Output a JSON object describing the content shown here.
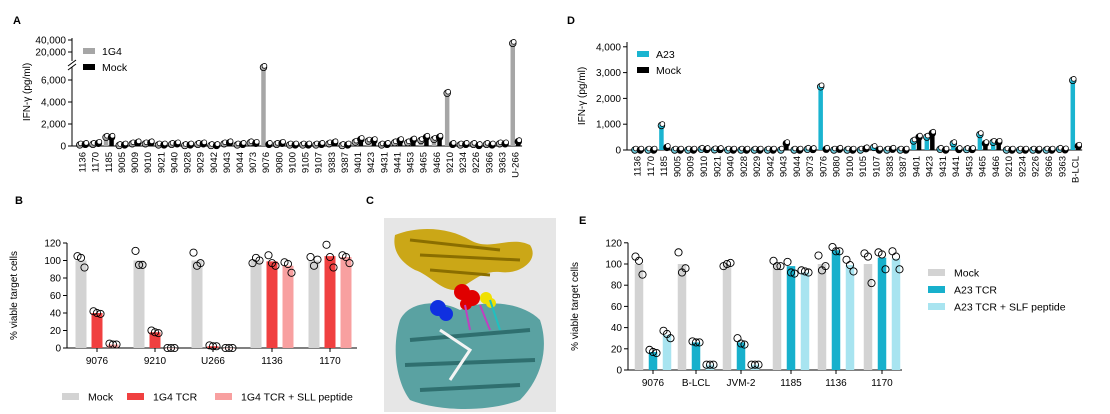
{
  "chart_data": [
    {
      "panel": "A",
      "type": "bar",
      "ylabel": "IFN-γ (pg/ml)",
      "yticks": [
        "0",
        "2,000",
        "4,000",
        "6,000",
        "20,000",
        "40,000"
      ],
      "ytick_values": [
        0,
        2000,
        4000,
        6000,
        20000,
        40000
      ],
      "axis_break": [
        7000,
        10000
      ],
      "legend_position": "top-left",
      "categories": [
        "1136",
        "1170",
        "1185",
        "9005",
        "9009",
        "9010",
        "9021",
        "9040",
        "9028",
        "9029",
        "9042",
        "9043",
        "9044",
        "9073",
        "9076",
        "9080",
        "9100",
        "9105",
        "9107",
        "9383",
        "9387",
        "9401",
        "9423",
        "9431",
        "9441",
        "9453",
        "9465",
        "9466",
        "9210",
        "9234",
        "9226",
        "9366",
        "9363",
        "U-266"
      ],
      "series": [
        {
          "name": "1G4",
          "color": "#a6a6a6",
          "values": [
            100,
            150,
            800,
            50,
            200,
            200,
            100,
            150,
            50,
            150,
            50,
            200,
            100,
            300,
            7500,
            150,
            100,
            100,
            100,
            200,
            50,
            350,
            450,
            100,
            300,
            300,
            500,
            600,
            4800,
            100,
            150,
            150,
            200,
            33000
          ]
        },
        {
          "name": "Mock",
          "color": "#000000",
          "values": [
            150,
            250,
            800,
            100,
            300,
            300,
            100,
            200,
            100,
            200,
            50,
            300,
            150,
            250,
            150,
            250,
            100,
            100,
            150,
            300,
            100,
            600,
            500,
            150,
            500,
            550,
            800,
            800,
            150,
            150,
            50,
            100,
            200,
            400
          ]
        }
      ]
    },
    {
      "panel": "D",
      "type": "bar",
      "ylabel": "IFN-γ (pg/ml)",
      "yticks": [
        "0",
        "1,000",
        "2,000",
        "3,000",
        "4,000"
      ],
      "ytick_values": [
        0,
        1000,
        2000,
        3000,
        4000
      ],
      "ylim": [
        0,
        4200
      ],
      "legend_position": "top-left",
      "categories": [
        "1136",
        "1170",
        "1185",
        "9005",
        "9009",
        "9010",
        "9021",
        "9040",
        "9028",
        "9029",
        "9042",
        "9043",
        "9044",
        "9073",
        "9076",
        "9080",
        "9100",
        "9105",
        "9107",
        "9383",
        "9387",
        "9401",
        "9423",
        "9431",
        "9441",
        "9453",
        "9465",
        "9466",
        "9210",
        "9234",
        "9226",
        "9366",
        "9363",
        "B-LCL"
      ],
      "series": [
        {
          "name": "A23",
          "color": "#1ab4d0",
          "values": [
            0,
            0,
            950,
            0,
            0,
            30,
            10,
            0,
            0,
            0,
            0,
            0,
            0,
            30,
            2450,
            0,
            0,
            0,
            100,
            0,
            0,
            350,
            500,
            30,
            250,
            20,
            600,
            300,
            0,
            0,
            0,
            0,
            30,
            2700
          ]
        },
        {
          "name": "Mock",
          "color": "#000000",
          "values": [
            0,
            0,
            100,
            0,
            0,
            20,
            20,
            0,
            0,
            0,
            0,
            250,
            0,
            20,
            30,
            30,
            0,
            50,
            0,
            30,
            0,
            500,
            650,
            0,
            20,
            20,
            250,
            300,
            0,
            0,
            0,
            0,
            10,
            150
          ]
        }
      ]
    },
    {
      "panel": "B",
      "type": "bar",
      "ylabel": "% viable target cells",
      "yticks": [
        "0",
        "20",
        "40",
        "60",
        "80",
        "100",
        "120"
      ],
      "ytick_values": [
        0,
        20,
        40,
        60,
        80,
        100,
        120
      ],
      "ylim": [
        0,
        120
      ],
      "legend_position": "bottom",
      "categories": [
        "9076",
        "9210",
        "U266",
        "1136",
        "1170"
      ],
      "series": [
        {
          "name": "Mock",
          "color": "#d3d3d3",
          "values": [
            100,
            100,
            100,
            100,
            100
          ],
          "points": [
            [
              105,
              103,
              92
            ],
            [
              111,
              95,
              95
            ],
            [
              109,
              94,
              97
            ],
            [
              97,
              103,
              100
            ],
            [
              104,
              94,
              101
            ]
          ]
        },
        {
          "name": "1G4 TCR",
          "color": "#f04040",
          "values": [
            40,
            18,
            2,
            99,
            105
          ],
          "points": [
            [
              42,
              40,
              39
            ],
            [
              20,
              18,
              17
            ],
            [
              3,
              2,
              2
            ],
            [
              106,
              97,
              94
            ],
            [
              118,
              104,
              92
            ]
          ]
        },
        {
          "name": "1G4 TCR + SLL peptide",
          "color": "#f8a0a0",
          "values": [
            4,
            0,
            0,
            94,
            104
          ],
          "points": [
            [
              5,
              4,
              4
            ],
            [
              0,
              0,
              0
            ],
            [
              0,
              0,
              0
            ],
            [
              98,
              96,
              86
            ],
            [
              106,
              104,
              97
            ]
          ]
        }
      ]
    },
    {
      "panel": "E",
      "type": "bar",
      "ylabel": "% viable target cells",
      "yticks": [
        "0",
        "20",
        "40",
        "60",
        "80",
        "100",
        "120"
      ],
      "ytick_values": [
        0,
        20,
        40,
        60,
        80,
        100,
        120
      ],
      "ylim": [
        0,
        120
      ],
      "legend_position": "right",
      "categories": [
        "9076",
        "B-LCL",
        "JVM-2",
        "1185",
        "1136",
        "1170"
      ],
      "series": [
        {
          "name": "Mock",
          "color": "#d3d3d3",
          "values": [
            100,
            100,
            100,
            100,
            100,
            100
          ],
          "points": [
            [
              107,
              103,
              90
            ],
            [
              111,
              92,
              96
            ],
            [
              98,
              100,
              101
            ],
            [
              103,
              98,
              98
            ],
            [
              108,
              94,
              98
            ],
            [
              110,
              107,
              82
            ]
          ]
        },
        {
          "name": "A23 TCR",
          "color": "#17b0cc",
          "values": [
            17,
            26,
            26,
            98,
            113,
            106
          ],
          "points": [
            [
              19,
              17,
              16
            ],
            [
              27,
              26,
              26
            ],
            [
              30,
              25,
              24
            ],
            [
              102,
              92,
              91
            ],
            [
              116,
              112,
              112
            ],
            [
              111,
              109,
              95
            ]
          ]
        },
        {
          "name": "A23 TCR + SLF peptide",
          "color": "#a8e4f0",
          "values": [
            33,
            5,
            5,
            92,
            99,
            105
          ],
          "points": [
            [
              37,
              34,
              30
            ],
            [
              5,
              5,
              5
            ],
            [
              5,
              5,
              5
            ],
            [
              94,
              93,
              92
            ],
            [
              104,
              99,
              93
            ],
            [
              112,
              107,
              95
            ]
          ]
        }
      ]
    }
  ],
  "panels": {
    "A": "A",
    "B": "B",
    "C": "C",
    "D": "D",
    "E": "E"
  },
  "structure_image": {
    "icon": "protein-structure-image",
    "colors": [
      "#c8a000",
      "#4a9a9a",
      "#e00000",
      "#1030e0",
      "#f0e000",
      "#c040c0"
    ]
  }
}
